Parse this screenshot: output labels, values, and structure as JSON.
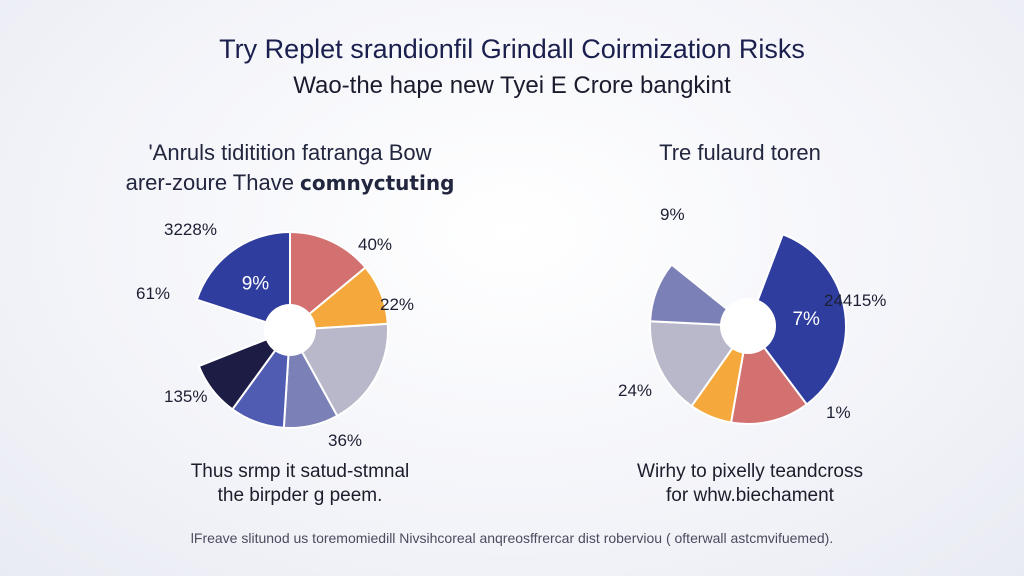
{
  "header": {
    "title": "Try Replet srandionfil Grindall Coirmization Risks",
    "subtitle": "Wao-the hape new Tyei E Crore bangkint"
  },
  "footnote": "lFreave slitunod us toremomiedill Nivsihcoreal anqreosffrercar dist roberviou ( ofterwall astcmvifuemed).",
  "chart_data": [
    {
      "type": "pie",
      "title_line1": "'Anruls tiditition fatranga Bow",
      "title_line2_a": "arer-zoure Thave ",
      "title_line2_b": "comnyctuting",
      "caption_line1": "Thus srmp it satud-stmnal",
      "caption_line2": "the birpder g peem.",
      "slice_labels": [
        "9%",
        "",
        "",
        "",
        "",
        "",
        ""
      ],
      "annotations": [
        "40%",
        "22%",
        "36%",
        "135%",
        "61%",
        "3228%"
      ],
      "slices": [
        {
          "value": 20,
          "color": "#2f3e9e"
        },
        {
          "value": 14,
          "color": "#d2716f"
        },
        {
          "value": 10,
          "color": "#f5a93c"
        },
        {
          "value": 18,
          "color": "#b9b8ca"
        },
        {
          "value": 9,
          "color": "#7b80b6"
        },
        {
          "value": 9,
          "color": "#4f5cb2"
        },
        {
          "value": 9,
          "color": "#1c1c45"
        }
      ],
      "gap_value": 11
    },
    {
      "type": "pie",
      "title": "Tre fulaurd toren",
      "caption_line1": "Wirhy to pixelly teandcross",
      "caption_line2": "for whw.biechament",
      "slice_labels": [
        "7%",
        "",
        "",
        "",
        ""
      ],
      "annotations": [
        "9%",
        "24415%",
        "1%",
        "24%"
      ],
      "slices": [
        {
          "value": 34,
          "color": "#2f3e9e"
        },
        {
          "value": 13,
          "color": "#d2716f"
        },
        {
          "value": 7,
          "color": "#f5a93c"
        },
        {
          "value": 16,
          "color": "#b9b8ca"
        },
        {
          "value": 10,
          "color": "#7b80b6"
        }
      ],
      "gap_value": 20
    }
  ]
}
